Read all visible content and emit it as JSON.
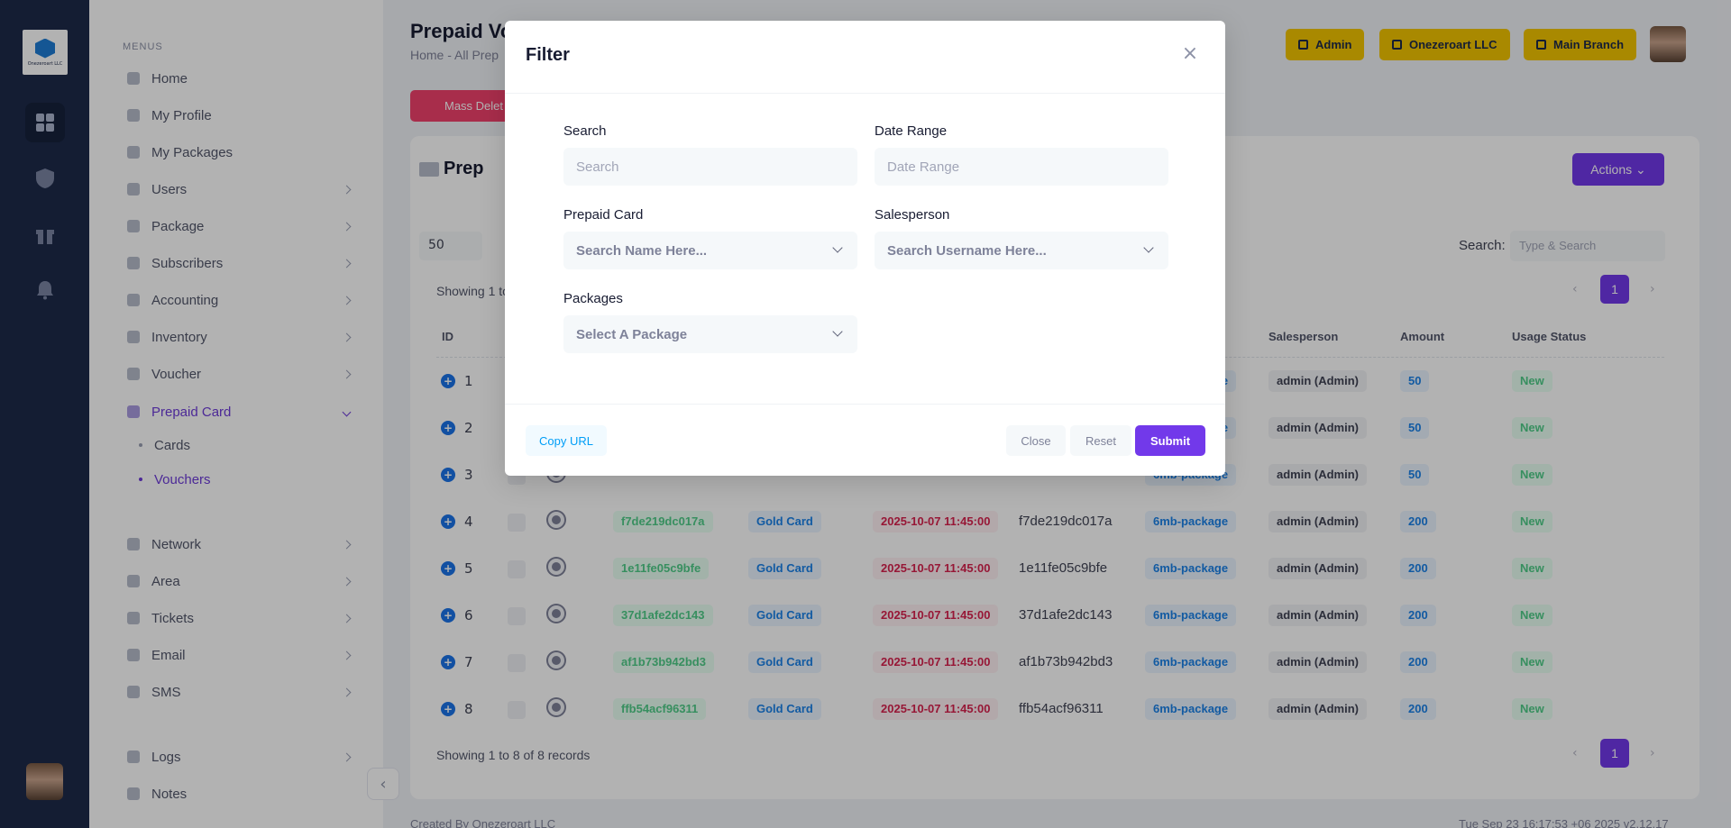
{
  "rail": {
    "logo_text": "Onezeroart LLC",
    "icons": [
      "dashboard-icon",
      "shield-icon",
      "gift-icon",
      "bell-icon"
    ]
  },
  "sidebar": {
    "menus_label": "MENUS",
    "items": [
      {
        "label": "Home",
        "icon": "home-icon",
        "has_children": false
      },
      {
        "label": "My Profile",
        "icon": "user-icon",
        "has_children": false
      },
      {
        "label": "My Packages",
        "icon": "package-icon",
        "has_children": false
      },
      {
        "label": "Users",
        "icon": "user-icon",
        "has_children": true
      },
      {
        "label": "Package",
        "icon": "package-icon",
        "has_children": true
      },
      {
        "label": "Subscribers",
        "icon": "users-icon",
        "has_children": true
      },
      {
        "label": "Accounting",
        "icon": "calculator-icon",
        "has_children": true
      },
      {
        "label": "Inventory",
        "icon": "bank-icon",
        "has_children": true
      },
      {
        "label": "Voucher",
        "icon": "ticket-icon",
        "has_children": true
      },
      {
        "label": "Prepaid Card",
        "icon": "card-icon",
        "has_children": true,
        "active": true
      }
    ],
    "prepaid_sub": [
      {
        "label": "Cards",
        "active": false
      },
      {
        "label": "Vouchers",
        "active": true
      }
    ],
    "items2": [
      {
        "label": "Network",
        "icon": "network-icon"
      },
      {
        "label": "Area",
        "icon": "location-icon"
      },
      {
        "label": "Tickets",
        "icon": "ticket-icon"
      },
      {
        "label": "Email",
        "icon": "mail-icon"
      },
      {
        "label": "SMS",
        "icon": "sms-icon"
      }
    ],
    "items3": [
      {
        "label": "Logs",
        "icon": "log-icon"
      },
      {
        "label": "Notes",
        "icon": "note-icon"
      }
    ]
  },
  "header": {
    "title": "Prepaid Vo",
    "breadcrumb": "Home  -  All Prep",
    "admin_btn": "Admin",
    "company_btn": "Onezeroart LLC",
    "branch_btn": "Main Branch"
  },
  "toolbar": {
    "mass_delete": "Mass Delet"
  },
  "card": {
    "title": "Prep",
    "actions": "Actions",
    "per_page": "50",
    "search_label": "Search:",
    "search_placeholder": "Type & Search",
    "showing_top": "Showing 1 to",
    "showing_bottom": "Showing 1 to 8 of 8 records",
    "page": "1",
    "prev": "‹",
    "next": "›"
  },
  "table": {
    "headers": [
      "ID",
      "Salesperson",
      "Amount",
      "Usage Status"
    ],
    "rows": [
      {
        "id": "1",
        "code": "",
        "card": "",
        "date": "",
        "plain": "",
        "package": "6mb-package",
        "salesperson": "admin (Admin)",
        "amount": "50",
        "status": "New"
      },
      {
        "id": "2",
        "code": "",
        "card": "",
        "date": "",
        "plain": "",
        "package": "6mb-package",
        "salesperson": "admin (Admin)",
        "amount": "50",
        "status": "New"
      },
      {
        "id": "3",
        "code": "",
        "card": "",
        "date": "",
        "plain": "",
        "package": "6mb-package",
        "salesperson": "admin (Admin)",
        "amount": "50",
        "status": "New"
      },
      {
        "id": "4",
        "code": "f7de219dc017a",
        "card": "Gold Card",
        "date": "2025-10-07 11:45:00",
        "plain": "f7de219dc017a",
        "package": "6mb-package",
        "salesperson": "admin (Admin)",
        "amount": "200",
        "status": "New"
      },
      {
        "id": "5",
        "code": "1e11fe05c9bfe",
        "card": "Gold Card",
        "date": "2025-10-07 11:45:00",
        "plain": "1e11fe05c9bfe",
        "package": "6mb-package",
        "salesperson": "admin (Admin)",
        "amount": "200",
        "status": "New"
      },
      {
        "id": "6",
        "code": "37d1afe2dc143",
        "card": "Gold Card",
        "date": "2025-10-07 11:45:00",
        "plain": "37d1afe2dc143",
        "package": "6mb-package",
        "salesperson": "admin (Admin)",
        "amount": "200",
        "status": "New"
      },
      {
        "id": "7",
        "code": "af1b73b942bd3",
        "card": "Gold Card",
        "date": "2025-10-07 11:45:00",
        "plain": "af1b73b942bd3",
        "package": "6mb-package",
        "salesperson": "admin (Admin)",
        "amount": "200",
        "status": "New"
      },
      {
        "id": "8",
        "code": "ffb54acf96311",
        "card": "Gold Card",
        "date": "2025-10-07 11:45:00",
        "plain": "ffb54acf96311",
        "package": "6mb-package",
        "salesperson": "admin (Admin)",
        "amount": "200",
        "status": "New"
      }
    ]
  },
  "footer": {
    "created_by": "Created By  Onezeroart LLC",
    "datetime": "Tue Sep 23 16:17:53 +06 2025    v2.12.17"
  },
  "modal": {
    "title": "Filter",
    "search_label": "Search",
    "search_placeholder": "Search",
    "date_label": "Date Range",
    "date_placeholder": "Date Range",
    "prepaid_label": "Prepaid Card",
    "prepaid_placeholder": "Search Name Here...",
    "sales_label": "Salesperson",
    "sales_placeholder": "Search Username Here...",
    "packages_label": "Packages",
    "packages_placeholder": "Select A Package",
    "copy_url": "Copy URL",
    "close": "Close",
    "reset": "Reset",
    "submit": "Submit"
  }
}
